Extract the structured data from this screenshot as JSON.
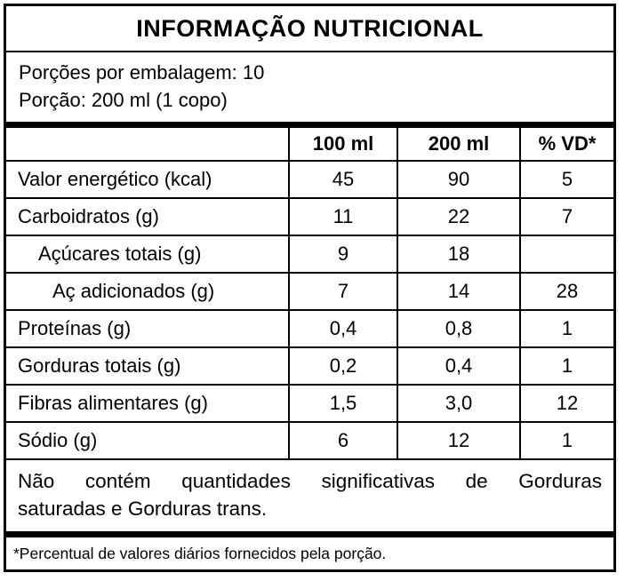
{
  "title": "INFORMAÇÃO NUTRICIONAL",
  "servings_line": "Porções por embalagem: 10",
  "portion_line": "Porção: 200 ml (1 copo)",
  "table": {
    "columns": [
      "",
      "100 ml",
      "200 ml",
      "% VD*"
    ],
    "rows": [
      {
        "name": "Valor energético (kcal)",
        "indent": 0,
        "v100": "45",
        "v200": "90",
        "vd": "5"
      },
      {
        "name": "Carboidratos (g)",
        "indent": 0,
        "v100": "11",
        "v200": "22",
        "vd": "7"
      },
      {
        "name": "Açúcares totais (g)",
        "indent": 1,
        "v100": "9",
        "v200": "18",
        "vd": ""
      },
      {
        "name": "Aç adicionados (g)",
        "indent": 2,
        "v100": "7",
        "v200": "14",
        "vd": "28"
      },
      {
        "name": "Proteínas (g)",
        "indent": 0,
        "v100": "0,4",
        "v200": "0,8",
        "vd": "1"
      },
      {
        "name": "Gorduras totais (g)",
        "indent": 0,
        "v100": "0,2",
        "v200": "0,4",
        "vd": "1"
      },
      {
        "name": "Fibras alimentares (g)",
        "indent": 0,
        "v100": "1,5",
        "v200": "3,0",
        "vd": "12"
      },
      {
        "name": "Sódio (g)",
        "indent": 0,
        "v100": "6",
        "v200": "12",
        "vd": "1"
      }
    ]
  },
  "note": {
    "line1": "Não contém quantidades significativas de Gorduras",
    "line2": "saturadas e Gorduras trans."
  },
  "footnote": "*Percentual de valores diários fornecidos pela porção.",
  "colors": {
    "border": "#000000",
    "background": "#ffffff",
    "text": "#000000"
  }
}
